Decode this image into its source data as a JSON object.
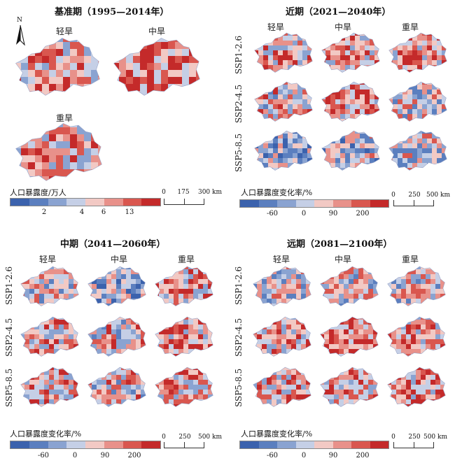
{
  "panels": {
    "baseline": {
      "title": "基准期（1995—2014年）",
      "maps": [
        "轻旱",
        "中旱",
        "重旱"
      ]
    },
    "near": {
      "title": "近期（2021—2040年）"
    },
    "mid": {
      "title": "中期（2041—2060年）"
    },
    "far": {
      "title": "远期（2081—2100年）"
    }
  },
  "columns": [
    "轻旱",
    "中旱",
    "重旱"
  ],
  "scenarios": [
    "SSP1-2.6",
    "SSP2-4.5",
    "SSP5-8.5"
  ],
  "north_label": "N",
  "legend_baseline": {
    "title": "人口暴露度/万人",
    "ticks": [
      "2",
      "4",
      "6",
      "13"
    ],
    "colors": [
      "#3b62ad",
      "#5b7fbf",
      "#8aa3d1",
      "#c5cfe6",
      "#f2c9c4",
      "#e8918a",
      "#d9574f",
      "#c42a2a"
    ]
  },
  "legend_change": {
    "title": "人口暴露度变化率/%",
    "ticks": [
      "-60",
      "0",
      "90",
      "200"
    ],
    "colors": [
      "#3b62ad",
      "#5b7fbf",
      "#8aa3d1",
      "#c5cfe6",
      "#f2c9c4",
      "#e8918a",
      "#d9574f",
      "#c42a2a"
    ]
  },
  "scale_baseline": {
    "ticks": [
      "0",
      "175",
      "300 km"
    ]
  },
  "scale_change": {
    "ticks": [
      "0",
      "250",
      "500 km"
    ]
  },
  "map_colors": {
    "baseline": [
      0.55,
      0.7,
      0.5
    ],
    "near": [
      [
        0.5,
        0.55,
        0.6
      ],
      [
        0.45,
        0.65,
        0.35
      ],
      [
        0.15,
        0.2,
        0.3
      ]
    ],
    "mid": [
      [
        0.35,
        0.15,
        0.55
      ],
      [
        0.5,
        0.45,
        0.6
      ],
      [
        0.5,
        0.45,
        0.55
      ]
    ],
    "far": [
      [
        0.3,
        0.35,
        0.4
      ],
      [
        0.55,
        0.7,
        0.6
      ],
      [
        0.55,
        0.6,
        0.65
      ]
    ]
  }
}
